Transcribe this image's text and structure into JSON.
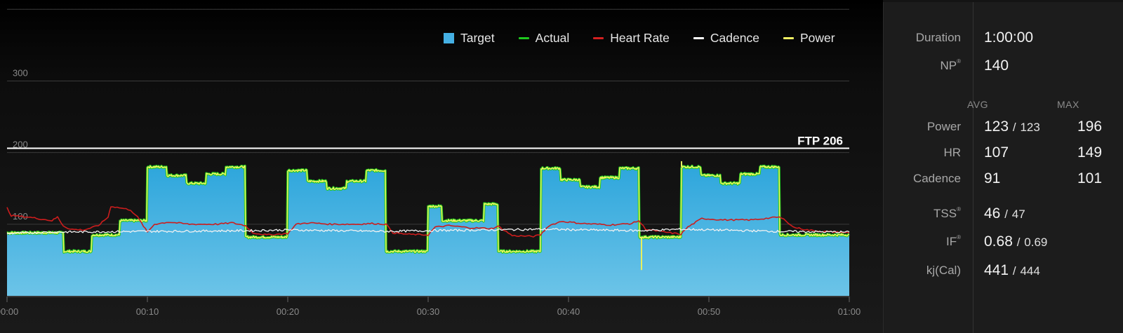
{
  "chart_data": {
    "type": "area",
    "legend_position": "top-right",
    "legend": [
      {
        "label": "Target",
        "color": "#45b0e4",
        "shape": "box"
      },
      {
        "label": "Actual",
        "color": "#1ec91e",
        "shape": "line"
      },
      {
        "label": "Heart Rate",
        "color": "#d42020",
        "shape": "line"
      },
      {
        "label": "Cadence",
        "color": "#ffffff",
        "shape": "line"
      },
      {
        "label": "Power",
        "color": "#f2f263",
        "shape": "line"
      }
    ],
    "x_ticks": [
      "00:00",
      "00:10",
      "00:20",
      "00:30",
      "00:40",
      "00:50",
      "01:00"
    ],
    "x_range_min": [
      0,
      60
    ],
    "y_ticks": [
      "100",
      "200",
      "300"
    ],
    "y_range": [
      0,
      413
    ],
    "grid": true,
    "ftp_line": {
      "value": 206,
      "label": "FTP 206"
    },
    "target_steps": [
      [
        0,
        4,
        88
      ],
      [
        4,
        6,
        62
      ],
      [
        6,
        8,
        85
      ],
      [
        8,
        10,
        105
      ],
      [
        10,
        17,
        180
      ],
      [
        17,
        20,
        82
      ],
      [
        20,
        27,
        175
      ],
      [
        27,
        30,
        62
      ],
      [
        30,
        31,
        125
      ],
      [
        31,
        34,
        105
      ],
      [
        34,
        35,
        128
      ],
      [
        35,
        38,
        62
      ],
      [
        38,
        45,
        178
      ],
      [
        45,
        48,
        82
      ],
      [
        48,
        55,
        180
      ],
      [
        55,
        60,
        85
      ]
    ],
    "interval_bumps": [
      {
        "segment": [
          10,
          17
        ],
        "pattern": [
          180,
          168,
          157,
          170,
          180
        ]
      },
      {
        "segment": [
          20,
          27
        ],
        "pattern": [
          175,
          160,
          150,
          160,
          175
        ]
      },
      {
        "segment": [
          38,
          45
        ],
        "pattern": [
          178,
          162,
          152,
          165,
          178
        ]
      },
      {
        "segment": [
          48,
          55
        ],
        "pattern": [
          180,
          168,
          157,
          170,
          180
        ]
      }
    ],
    "heart_rate": [
      [
        0,
        123
      ],
      [
        0.3,
        112
      ],
      [
        1.5,
        110
      ],
      [
        3.2,
        105
      ],
      [
        3.6,
        110
      ],
      [
        4,
        98
      ],
      [
        4.5,
        93
      ],
      [
        5.5,
        92
      ],
      [
        6.5,
        98
      ],
      [
        7.2,
        110
      ],
      [
        7.4,
        125
      ],
      [
        8,
        123
      ],
      [
        8.8,
        120
      ],
      [
        9.3,
        110
      ],
      [
        10,
        89
      ],
      [
        10.5,
        100
      ],
      [
        11.5,
        103
      ],
      [
        13,
        100
      ],
      [
        15,
        100
      ],
      [
        16,
        102
      ],
      [
        17,
        98
      ],
      [
        17.5,
        88
      ],
      [
        18.5,
        85
      ],
      [
        20,
        87
      ],
      [
        20.6,
        100
      ],
      [
        21.5,
        102
      ],
      [
        23,
        100
      ],
      [
        25,
        100
      ],
      [
        26,
        101
      ],
      [
        27,
        100
      ],
      [
        27.5,
        88
      ],
      [
        28.5,
        86
      ],
      [
        30,
        85
      ],
      [
        30.5,
        96
      ],
      [
        31.5,
        98
      ],
      [
        33,
        95
      ],
      [
        34.5,
        94
      ],
      [
        35,
        97
      ],
      [
        36,
        84
      ],
      [
        37.5,
        83
      ],
      [
        38,
        85
      ],
      [
        38.6,
        98
      ],
      [
        39.5,
        104
      ],
      [
        41,
        101
      ],
      [
        43,
        99
      ],
      [
        44.5,
        101
      ],
      [
        45,
        105
      ],
      [
        45.5,
        93
      ],
      [
        46.5,
        90
      ],
      [
        48,
        86
      ],
      [
        48.5,
        96
      ],
      [
        49.5,
        108
      ],
      [
        51,
        106
      ],
      [
        53,
        106
      ],
      [
        55,
        110
      ],
      [
        55.5,
        105
      ],
      [
        56,
        96
      ],
      [
        57,
        92
      ],
      [
        58,
        90
      ],
      [
        59,
        89
      ],
      [
        60,
        88
      ]
    ],
    "cadence": [
      [
        0,
        87
      ],
      [
        3,
        89
      ],
      [
        10,
        90
      ],
      [
        17,
        91
      ],
      [
        20,
        92
      ],
      [
        27,
        90
      ],
      [
        30,
        91
      ],
      [
        34,
        92
      ],
      [
        38,
        93
      ],
      [
        45,
        91
      ],
      [
        48,
        93
      ],
      [
        55,
        90
      ],
      [
        60,
        89
      ]
    ],
    "power_spikes": [
      [
        45.2,
        36
      ],
      [
        48.05,
        188
      ]
    ]
  },
  "stats": {
    "duration_label": "Duration",
    "duration_value": "1:00:00",
    "np_label": "NP",
    "np_value": "140",
    "reg_mark": "®",
    "avg_header": "AVG",
    "max_header": "MAX",
    "power_label": "Power",
    "power_avg": "123",
    "power_avg_sep": "/",
    "power_avg_alt": "123",
    "power_max": "196",
    "hr_label": "HR",
    "hr_avg": "107",
    "hr_max": "149",
    "cadence_label": "Cadence",
    "cadence_avg": "91",
    "cadence_max": "101",
    "tss_label": "TSS",
    "tss_value": "46",
    "tss_sep": "/",
    "tss_alt": "47",
    "if_label": "IF",
    "if_value": "0.68",
    "if_sep": "/",
    "if_alt": "0.69",
    "kj_label": "kj(Cal)",
    "kj_value": "441",
    "kj_sep": "/",
    "kj_alt": "444"
  }
}
